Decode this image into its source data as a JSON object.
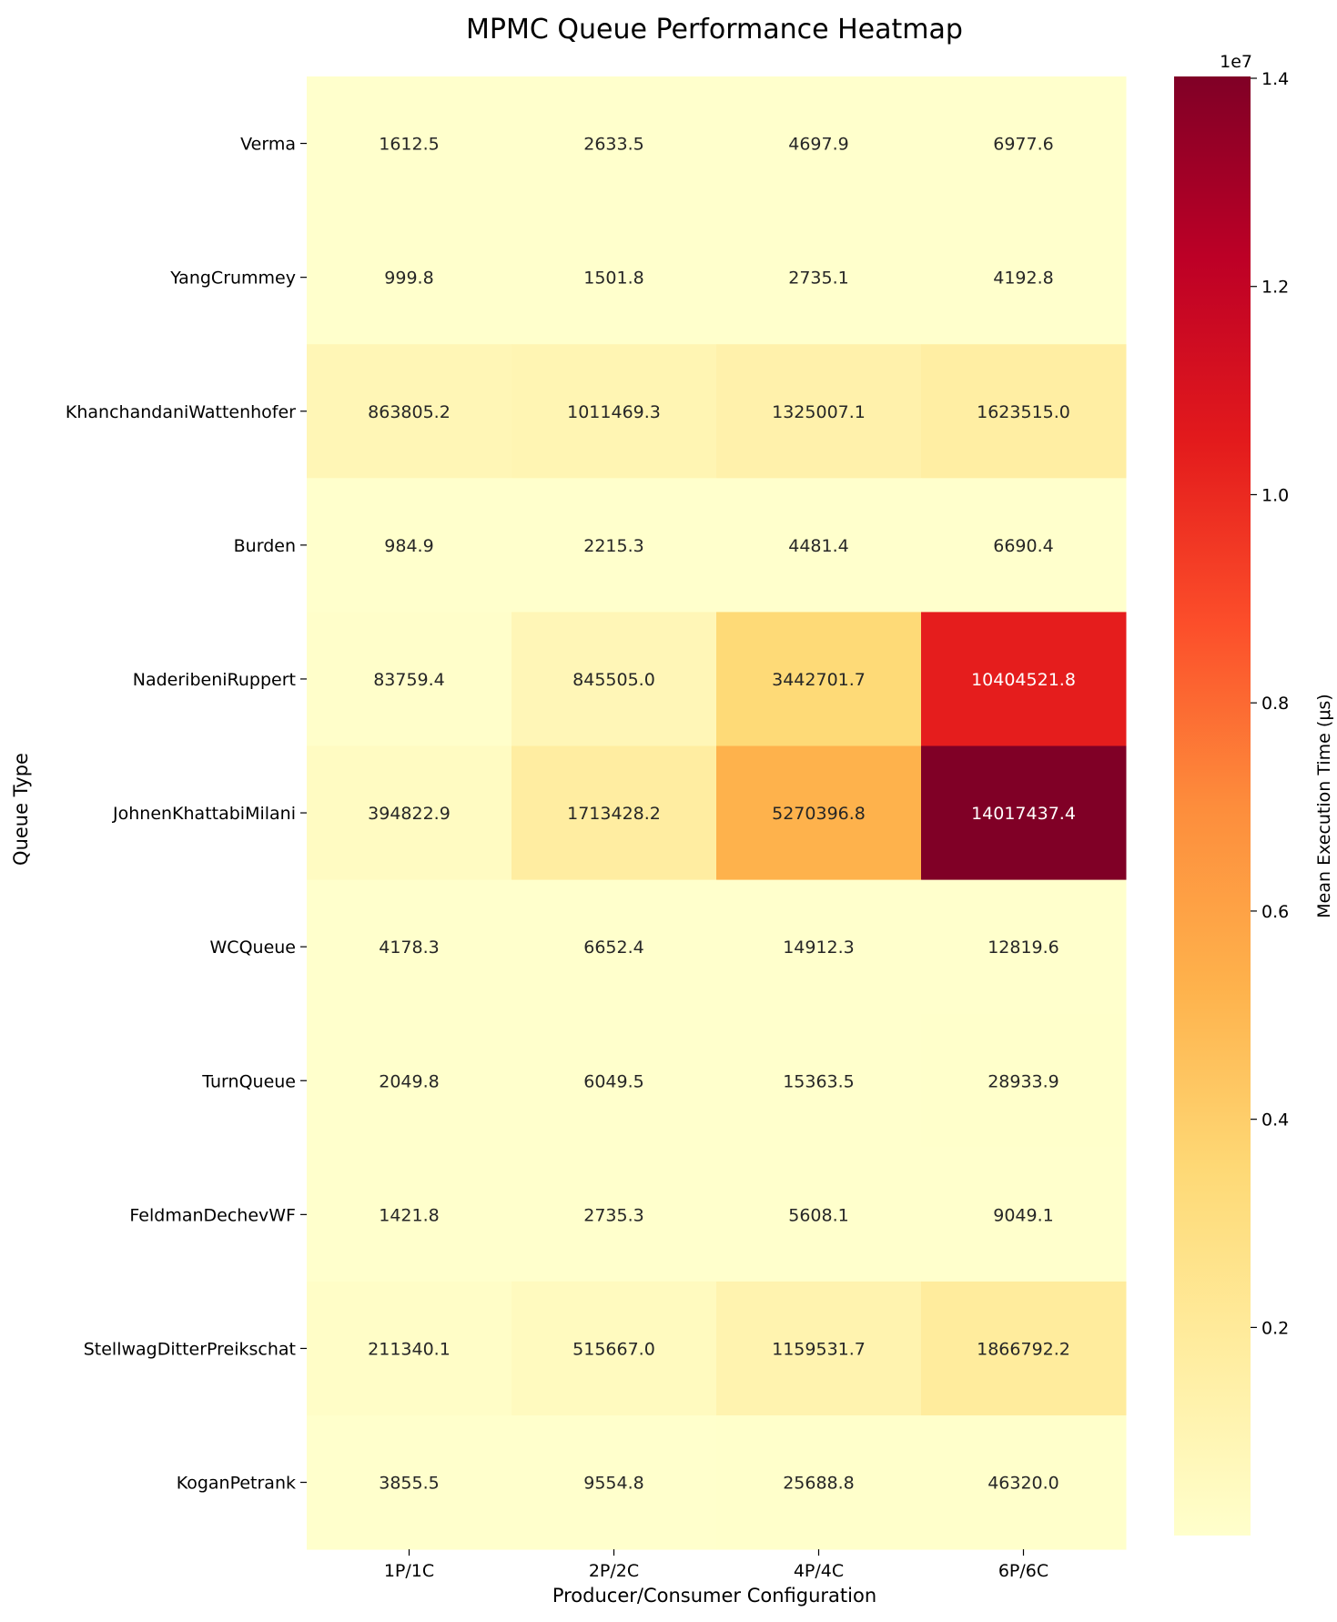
{
  "chart_data": {
    "type": "heatmap",
    "title": "MPMC Queue Performance Heatmap",
    "xlabel": "Producer/Consumer Configuration",
    "ylabel": "Queue Type",
    "columns": [
      "1P/1C",
      "2P/2C",
      "4P/4C",
      "6P/6C"
    ],
    "rows": [
      "Verma",
      "YangCrummey",
      "KhanchandaniWattenhofer",
      "Burden",
      "NaderibeniRuppert",
      "JohnenKhattabiMilani",
      "WCQueue",
      "TurnQueue",
      "FeldmanDechevWF",
      "StellwagDitterPreikschat",
      "KoganPetrank"
    ],
    "values": [
      [
        1612.5,
        2633.5,
        4697.9,
        6977.6
      ],
      [
        999.8,
        1501.8,
        2735.1,
        4192.8
      ],
      [
        863805.2,
        1011469.3,
        1325007.1,
        1623515.0
      ],
      [
        984.9,
        2215.3,
        4481.4,
        6690.4
      ],
      [
        83759.4,
        845505.0,
        3442701.7,
        10404521.8
      ],
      [
        394822.9,
        1713428.2,
        5270396.8,
        14017437.4
      ],
      [
        4178.3,
        6652.4,
        14912.3,
        12819.6
      ],
      [
        2049.8,
        6049.5,
        15363.5,
        28933.9
      ],
      [
        1421.8,
        2735.3,
        5608.1,
        9049.1
      ],
      [
        211340.1,
        515667.0,
        1159531.7,
        1866792.2
      ],
      [
        3855.5,
        9554.8,
        25688.8,
        46320.0
      ]
    ],
    "cell_labels": [
      [
        "1612.5",
        "2633.5",
        "4697.9",
        "6977.6"
      ],
      [
        "999.8",
        "1501.8",
        "2735.1",
        "4192.8"
      ],
      [
        "863805.2",
        "1011469.3",
        "1325007.1",
        "1623515.0"
      ],
      [
        "984.9",
        "2215.3",
        "4481.4",
        "6690.4"
      ],
      [
        "83759.4",
        "845505.0",
        "3442701.7",
        "10404521.8"
      ],
      [
        "394822.9",
        "1713428.2",
        "5270396.8",
        "14017437.4"
      ],
      [
        "4178.3",
        "6652.4",
        "14912.3",
        "12819.6"
      ],
      [
        "2049.8",
        "6049.5",
        "15363.5",
        "28933.9"
      ],
      [
        "1421.8",
        "2735.3",
        "5608.1",
        "9049.1"
      ],
      [
        "211340.1",
        "515667.0",
        "1159531.7",
        "1866792.2"
      ],
      [
        "3855.5",
        "9554.8",
        "25688.8",
        "46320.0"
      ]
    ],
    "colorbar": {
      "label": "Mean Execution Time (μs)",
      "multiplier": "1e7",
      "vmin": 984.9,
      "vmax": 14017437.4,
      "ticks": [
        2000000,
        4000000,
        6000000,
        8000000,
        10000000,
        12000000,
        14000000
      ],
      "tick_labels": [
        "0.2",
        "0.4",
        "0.6",
        "0.8",
        "1.0",
        "1.2",
        "1.4"
      ],
      "colormap": "YlOrRd",
      "colors": [
        "#ffffcc",
        "#ffeda0",
        "#fed976",
        "#feb24c",
        "#fd8d3c",
        "#fc4e2a",
        "#e31a1c",
        "#bd0026",
        "#800026"
      ]
    },
    "grid": false
  }
}
